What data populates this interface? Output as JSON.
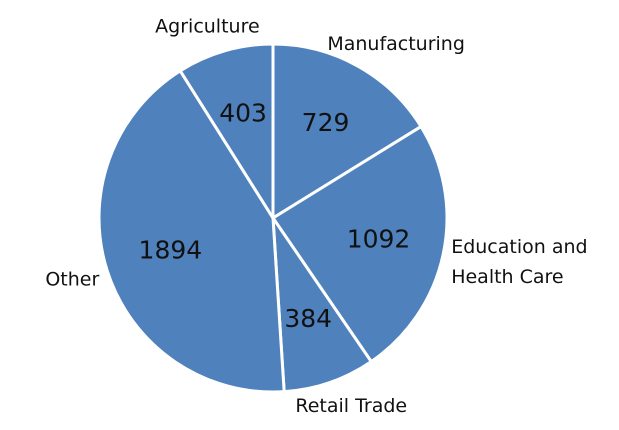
{
  "chart_data": {
    "type": "pie",
    "categories": [
      "Manufacturing",
      "Education and Health Care",
      "Retail Trade",
      "Other",
      "Agriculture"
    ],
    "values": [
      729,
      1092,
      384,
      1894,
      403
    ],
    "color": "#4f81bd"
  }
}
